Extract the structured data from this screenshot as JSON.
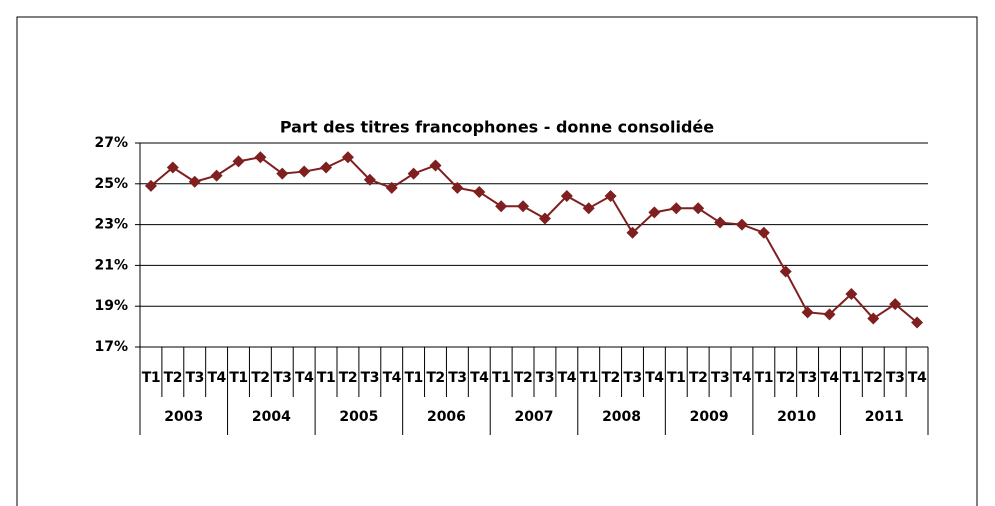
{
  "chart_data": {
    "type": "line",
    "title": "Part des titres francophones - donne consolidée",
    "categories": [
      "T1",
      "T2",
      "T3",
      "T4",
      "T1",
      "T2",
      "T3",
      "T4",
      "T1",
      "T2",
      "T3",
      "T4",
      "T1",
      "T2",
      "T3",
      "T4",
      "T1",
      "T2",
      "T3",
      "T4",
      "T1",
      "T2",
      "T3",
      "T4",
      "T1",
      "T2",
      "T3",
      "T4",
      "T1",
      "T2",
      "T3",
      "T4",
      "T1",
      "T2",
      "T3",
      "T4"
    ],
    "groups": [
      "2003",
      "2004",
      "2005",
      "2006",
      "2007",
      "2008",
      "2009",
      "2010",
      "2011"
    ],
    "values": [
      24.9,
      25.8,
      25.1,
      25.4,
      26.1,
      26.3,
      25.5,
      25.6,
      25.8,
      26.3,
      25.2,
      24.8,
      25.5,
      25.9,
      24.8,
      24.6,
      23.9,
      23.9,
      23.3,
      24.4,
      23.8,
      24.4,
      22.6,
      23.6,
      23.8,
      23.8,
      23.1,
      23.0,
      22.6,
      20.7,
      18.7,
      18.6,
      19.6,
      18.4,
      19.1,
      18.2
    ],
    "color": "#7f1f1f",
    "ylim": [
      17,
      27
    ],
    "yticks": [
      {
        "value": 17,
        "label": "17%"
      },
      {
        "value": 19,
        "label": "19%"
      },
      {
        "value": 21,
        "label": "21%"
      },
      {
        "value": 23,
        "label": "23%"
      },
      {
        "value": 25,
        "label": "25%"
      },
      {
        "value": 27,
        "label": "27%"
      }
    ],
    "grid": true
  }
}
